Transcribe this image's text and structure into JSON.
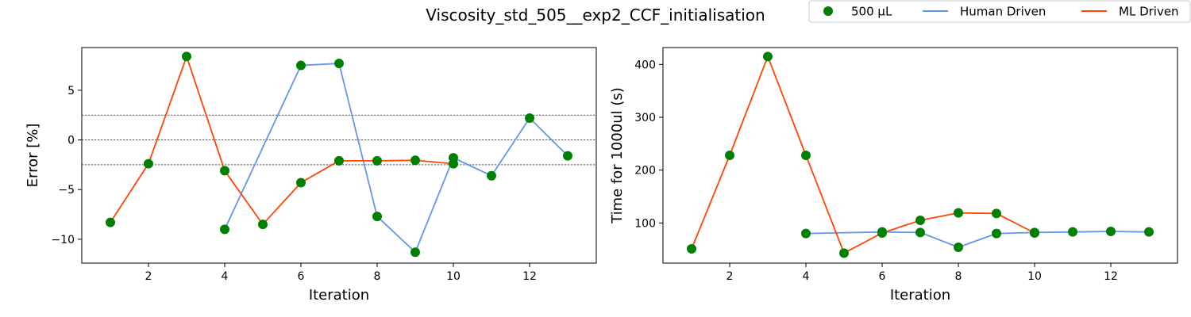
{
  "figure": {
    "title": "Viscosity_std_505__exp2_CCF_initialisation"
  },
  "legend": {
    "location": "top-right",
    "entries": [
      {
        "label": "500 µL",
        "kind": "marker",
        "color": "#008000"
      },
      {
        "label": "Human Driven",
        "kind": "line",
        "color": "#6495ed"
      },
      {
        "label": "ML Driven",
        "kind": "line",
        "color": "#ff4500"
      }
    ]
  },
  "chart_data": [
    {
      "type": "line",
      "xlabel": "Iteration",
      "ylabel": "Error [%]",
      "xlim": [
        0.25,
        13.75
      ],
      "ylim": [
        -12.4,
        9.3
      ],
      "xticks": [
        2,
        4,
        6,
        8,
        10,
        12
      ],
      "yticks": [
        -10,
        -5,
        0,
        5
      ],
      "ytick_labels": [
        "−10",
        "−5",
        "0",
        "5"
      ],
      "hlines": [
        2.5,
        0,
        -2.5
      ],
      "grid": false,
      "series": [
        {
          "name": "Human Driven",
          "style": "line",
          "color": "#6495ed",
          "x": [
            4,
            6,
            7,
            8,
            9,
            10,
            11,
            12,
            13
          ],
          "y": [
            -9.0,
            7.5,
            7.7,
            -7.7,
            -11.3,
            -1.8,
            -3.6,
            2.2,
            -1.6
          ]
        },
        {
          "name": "ML Driven",
          "style": "line",
          "color": "#ff4500",
          "x": [
            1,
            2,
            3,
            4,
            5,
            6,
            7,
            8,
            9,
            10
          ],
          "y": [
            -8.3,
            -2.4,
            8.4,
            -3.1,
            -8.5,
            -4.3,
            -2.1,
            -2.1,
            -2.05,
            -2.4
          ]
        },
        {
          "name": "500 µL",
          "style": "marker",
          "color": "#008000",
          "x": [
            1,
            2,
            3,
            4,
            4,
            5,
            6,
            6,
            7,
            7,
            8,
            8,
            9,
            9,
            10,
            10,
            11,
            12,
            13
          ],
          "y": [
            -8.3,
            -2.4,
            8.4,
            -3.1,
            -9.0,
            -8.5,
            7.5,
            -4.3,
            7.7,
            -2.1,
            -2.1,
            -7.7,
            -2.05,
            -11.3,
            -1.8,
            -2.4,
            -3.6,
            2.2,
            -1.6
          ]
        }
      ]
    },
    {
      "type": "line",
      "xlabel": "Iteration",
      "ylabel": "Time for 1000ul (s)",
      "xlim": [
        0.25,
        13.75
      ],
      "ylim": [
        24,
        432
      ],
      "xticks": [
        2,
        4,
        6,
        8,
        10,
        12
      ],
      "yticks": [
        100,
        200,
        300,
        400
      ],
      "ytick_labels": [
        "100",
        "200",
        "300",
        "400"
      ],
      "hlines": [],
      "grid": false,
      "series": [
        {
          "name": "Human Driven",
          "style": "line",
          "color": "#6495ed",
          "x": [
            4,
            6,
            7,
            8,
            9,
            10,
            11,
            12,
            13
          ],
          "y": [
            80,
            83,
            82,
            54,
            80,
            82,
            83,
            84,
            83
          ]
        },
        {
          "name": "ML Driven",
          "style": "line",
          "color": "#ff4500",
          "x": [
            1,
            2,
            3,
            4,
            5,
            6,
            7,
            8,
            9,
            10
          ],
          "y": [
            51,
            228,
            415,
            228,
            43,
            81,
            105,
            119,
            118,
            81
          ]
        },
        {
          "name": "500 µL",
          "style": "marker",
          "color": "#008000",
          "x": [
            1,
            2,
            3,
            4,
            4,
            5,
            6,
            6,
            7,
            7,
            8,
            8,
            9,
            9,
            10,
            10,
            11,
            12,
            13
          ],
          "y": [
            51,
            228,
            415,
            228,
            80,
            43,
            83,
            81,
            82,
            105,
            119,
            54,
            118,
            80,
            82,
            81,
            83,
            84,
            83
          ]
        }
      ]
    }
  ]
}
